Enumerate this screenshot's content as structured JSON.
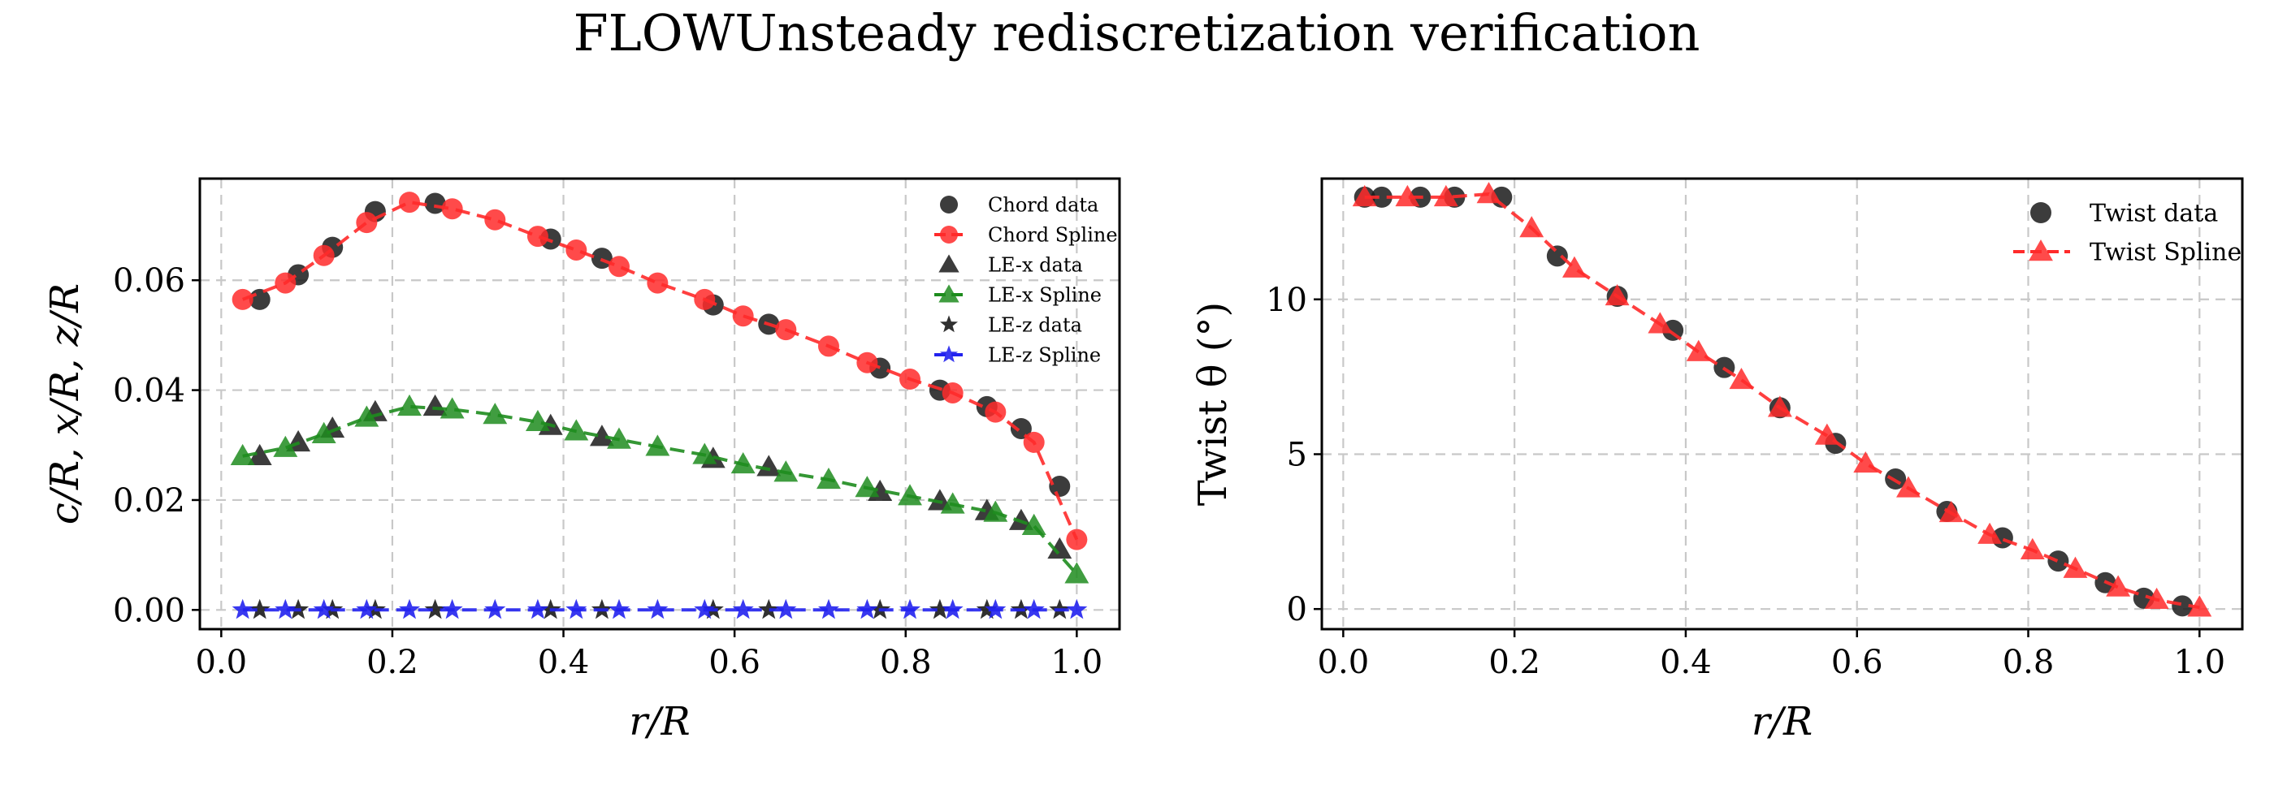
{
  "figure": {
    "title": "FLOWUnsteady rediscretization verification"
  },
  "chart_data": [
    {
      "type": "line",
      "xlabel": "r/R",
      "ylabel": "c/R, x/R, z/R",
      "xlim": [
        -0.025,
        1.05
      ],
      "ylim": [
        -0.0035,
        0.0785
      ],
      "xticks": [
        0.0,
        0.2,
        0.4,
        0.6,
        0.8,
        1.0
      ],
      "xtick_labels": [
        "0.0",
        "0.2",
        "0.4",
        "0.6",
        "0.8",
        "1.0"
      ],
      "yticks": [
        0.0,
        0.02,
        0.04,
        0.06
      ],
      "ytick_labels": [
        "0.00",
        "0.02",
        "0.04",
        "0.06"
      ],
      "grid": true,
      "legend_position": "top-right",
      "series": [
        {
          "name": "Chord data",
          "kind": "data",
          "marker": "circle",
          "color": "#1a1a1a",
          "line": "none",
          "x": [
            0.045,
            0.09,
            0.13,
            0.18,
            0.25,
            0.385,
            0.445,
            0.575,
            0.64,
            0.77,
            0.84,
            0.895,
            0.935,
            0.98
          ],
          "y": [
            0.0565,
            0.061,
            0.066,
            0.0725,
            0.074,
            0.0675,
            0.064,
            0.0555,
            0.052,
            0.044,
            0.04,
            0.037,
            0.033,
            0.0225
          ]
        },
        {
          "name": "Chord Spline",
          "kind": "spline",
          "marker": "circle",
          "color": "#ff2a2a",
          "line": "dashed",
          "x": [
            0.025,
            0.075,
            0.12,
            0.17,
            0.22,
            0.27,
            0.32,
            0.37,
            0.415,
            0.465,
            0.51,
            0.565,
            0.61,
            0.66,
            0.71,
            0.755,
            0.805,
            0.855,
            0.905,
            0.95,
            1.0
          ],
          "y": [
            0.0565,
            0.0595,
            0.0645,
            0.0705,
            0.0742,
            0.073,
            0.071,
            0.068,
            0.0655,
            0.0625,
            0.0595,
            0.0565,
            0.0535,
            0.051,
            0.048,
            0.045,
            0.042,
            0.0395,
            0.036,
            0.0305,
            0.0128
          ]
        },
        {
          "name": "LE-x data",
          "kind": "data",
          "marker": "triangle",
          "color": "#1a1a1a",
          "line": "none",
          "x": [
            0.045,
            0.09,
            0.13,
            0.18,
            0.25,
            0.385,
            0.445,
            0.575,
            0.64,
            0.77,
            0.84,
            0.895,
            0.935,
            0.98
          ],
          "y": [
            0.028,
            0.0305,
            0.033,
            0.036,
            0.037,
            0.0335,
            0.0315,
            0.0275,
            0.026,
            0.0215,
            0.0198,
            0.018,
            0.0162,
            0.011
          ]
        },
        {
          "name": "LE-x Spline",
          "kind": "spline",
          "marker": "triangle",
          "color": "#1e8c1e",
          "line": "dashed",
          "x": [
            0.025,
            0.075,
            0.12,
            0.17,
            0.22,
            0.27,
            0.32,
            0.37,
            0.415,
            0.465,
            0.51,
            0.565,
            0.61,
            0.66,
            0.71,
            0.755,
            0.805,
            0.855,
            0.905,
            0.95,
            1.0
          ],
          "y": [
            0.028,
            0.0295,
            0.032,
            0.035,
            0.037,
            0.0365,
            0.0355,
            0.0342,
            0.0325,
            0.031,
            0.0297,
            0.0282,
            0.0265,
            0.025,
            0.0237,
            0.0222,
            0.0207,
            0.0192,
            0.0177,
            0.0153,
            0.0065
          ]
        },
        {
          "name": "LE-z data",
          "kind": "data",
          "marker": "star",
          "color": "#1a1a1a",
          "line": "none",
          "x": [
            0.045,
            0.09,
            0.13,
            0.18,
            0.25,
            0.385,
            0.445,
            0.575,
            0.64,
            0.77,
            0.84,
            0.895,
            0.935,
            0.98
          ],
          "y": [
            0,
            0,
            0,
            0,
            0,
            0,
            0,
            0,
            0,
            0,
            0,
            0,
            0,
            0
          ]
        },
        {
          "name": "LE-z Spline",
          "kind": "spline",
          "marker": "star",
          "color": "#2222ee",
          "line": "dashed",
          "x": [
            0.025,
            0.075,
            0.12,
            0.17,
            0.22,
            0.27,
            0.32,
            0.37,
            0.415,
            0.465,
            0.51,
            0.565,
            0.61,
            0.66,
            0.71,
            0.755,
            0.805,
            0.855,
            0.905,
            0.95,
            1.0
          ],
          "y": [
            0,
            0,
            0,
            0,
            0,
            0,
            0,
            0,
            0,
            0,
            0,
            0,
            0,
            0,
            0,
            0,
            0,
            0,
            0,
            0,
            0
          ]
        }
      ]
    },
    {
      "type": "line",
      "xlabel": "r/R",
      "ylabel": "Twist θ (°)",
      "xlim": [
        -0.025,
        1.05
      ],
      "ylim": [
        -0.65,
        13.9
      ],
      "xticks": [
        0.0,
        0.2,
        0.4,
        0.6,
        0.8,
        1.0
      ],
      "xtick_labels": [
        "0.0",
        "0.2",
        "0.4",
        "0.6",
        "0.8",
        "1.0"
      ],
      "yticks": [
        0,
        5,
        10
      ],
      "ytick_labels": [
        "0",
        "5",
        "10"
      ],
      "grid": true,
      "legend_position": "top-right",
      "series": [
        {
          "name": "Twist data",
          "kind": "data",
          "marker": "circle",
          "color": "#1a1a1a",
          "line": "none",
          "x": [
            0.025,
            0.045,
            0.09,
            0.13,
            0.185,
            0.25,
            0.32,
            0.385,
            0.445,
            0.51,
            0.575,
            0.645,
            0.705,
            0.77,
            0.835,
            0.89,
            0.935,
            0.98
          ],
          "y": [
            13.3,
            13.3,
            13.3,
            13.3,
            13.3,
            11.4,
            10.1,
            9.0,
            7.8,
            6.5,
            5.35,
            4.2,
            3.15,
            2.3,
            1.55,
            0.85,
            0.35,
            0.1
          ]
        },
        {
          "name": "Twist Spline",
          "kind": "spline",
          "marker": "triangle",
          "color": "#ff2a2a",
          "line": "dashed",
          "x": [
            0.025,
            0.075,
            0.12,
            0.17,
            0.22,
            0.27,
            0.32,
            0.37,
            0.415,
            0.465,
            0.51,
            0.565,
            0.61,
            0.66,
            0.71,
            0.755,
            0.805,
            0.855,
            0.905,
            0.95,
            1.0
          ],
          "y": [
            13.3,
            13.3,
            13.3,
            13.4,
            12.3,
            11.0,
            10.1,
            9.2,
            8.3,
            7.4,
            6.5,
            5.6,
            4.7,
            3.9,
            3.1,
            2.4,
            1.9,
            1.3,
            0.7,
            0.3,
            0.05
          ]
        }
      ]
    }
  ]
}
